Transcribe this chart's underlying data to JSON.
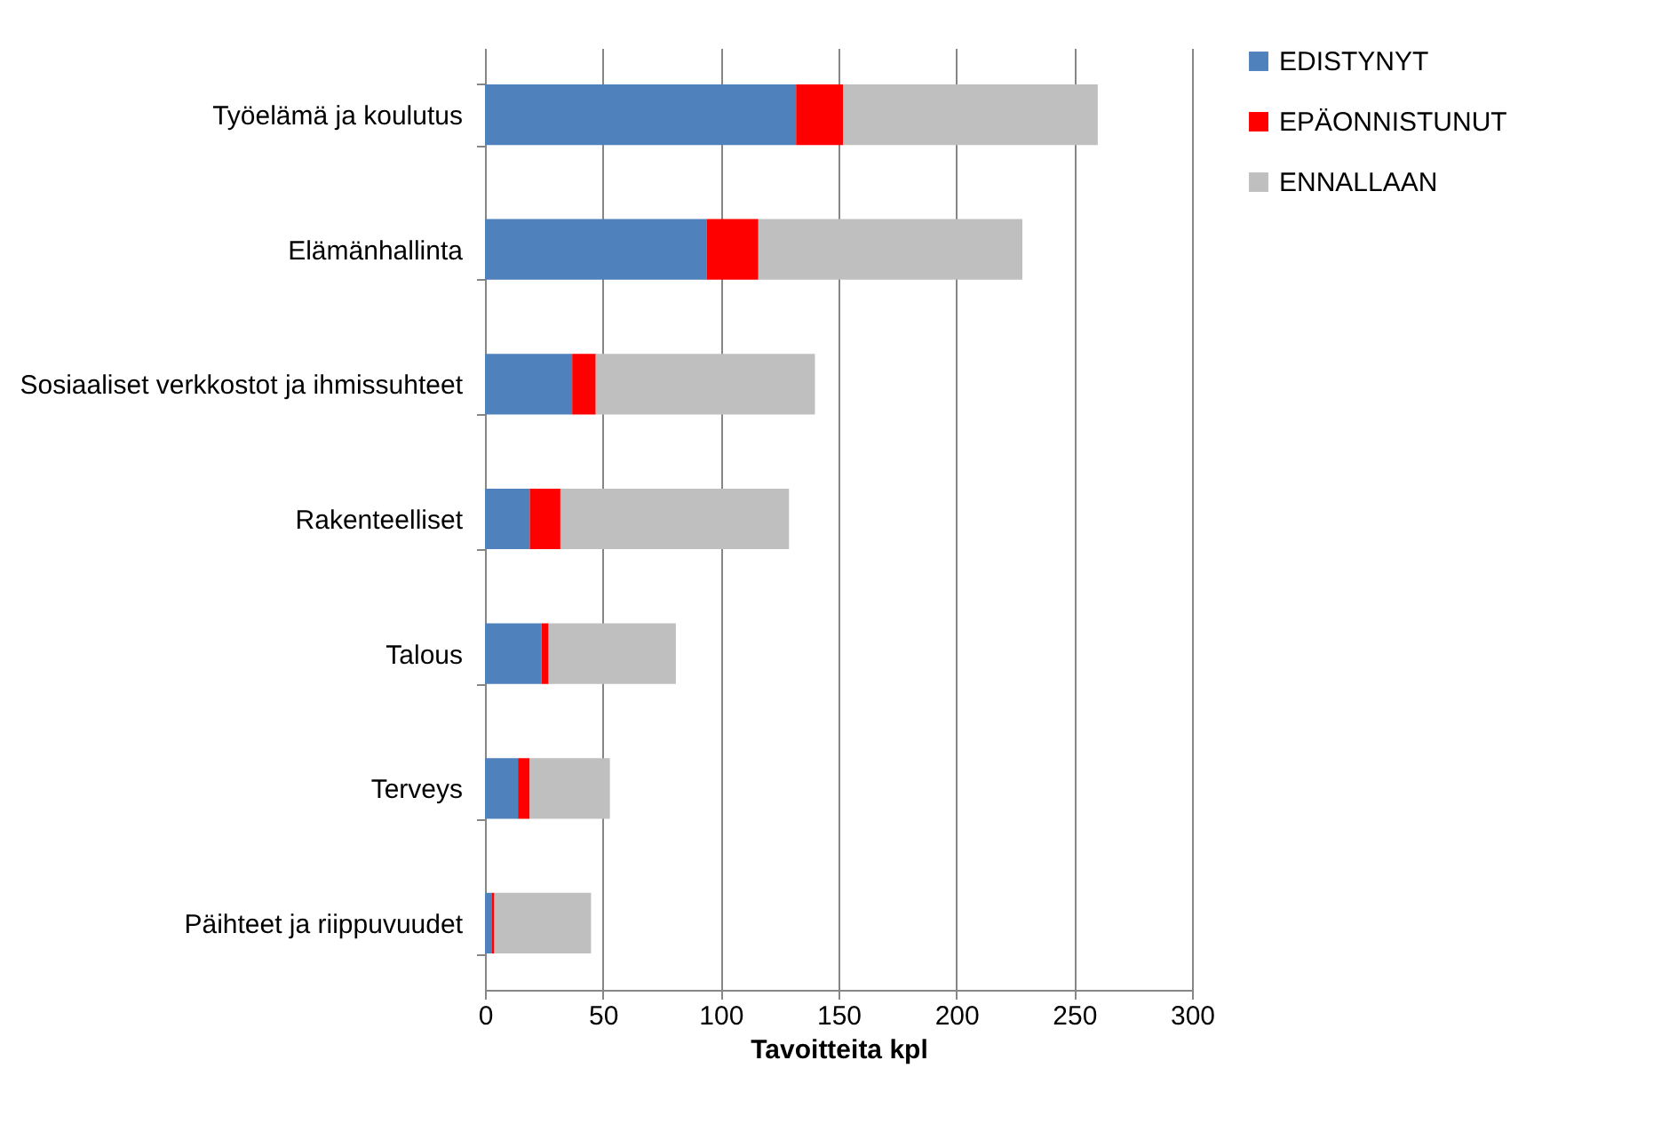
{
  "chart_data": {
    "type": "bar",
    "orientation": "horizontal",
    "stacked": true,
    "categories": [
      "Työelämä ja koulutus",
      "Elämänhallinta",
      "Sosiaaliset verkkostot ja ihmissuhteet",
      "Rakenteelliset",
      "Talous",
      "Terveys",
      "Päihteet ja riippuvuudet"
    ],
    "series": [
      {
        "name": "EDISTYNYT",
        "color": "#4f81bd",
        "values": [
          132,
          94,
          37,
          19,
          24,
          14,
          3
        ]
      },
      {
        "name": "EPÄONNISTUNUT",
        "color": "#ff0000",
        "values": [
          20,
          22,
          10,
          13,
          3,
          5,
          1
        ]
      },
      {
        "name": "ENNALLAAN",
        "color": "#bfbfbf",
        "values": [
          108,
          112,
          93,
          97,
          54,
          34,
          41
        ]
      }
    ],
    "xlabel": "Tavoitteita kpl",
    "xlim": [
      0,
      300
    ],
    "xticks": [
      0,
      50,
      100,
      150,
      200,
      250,
      300
    ],
    "grid": "x",
    "legend": "right"
  }
}
